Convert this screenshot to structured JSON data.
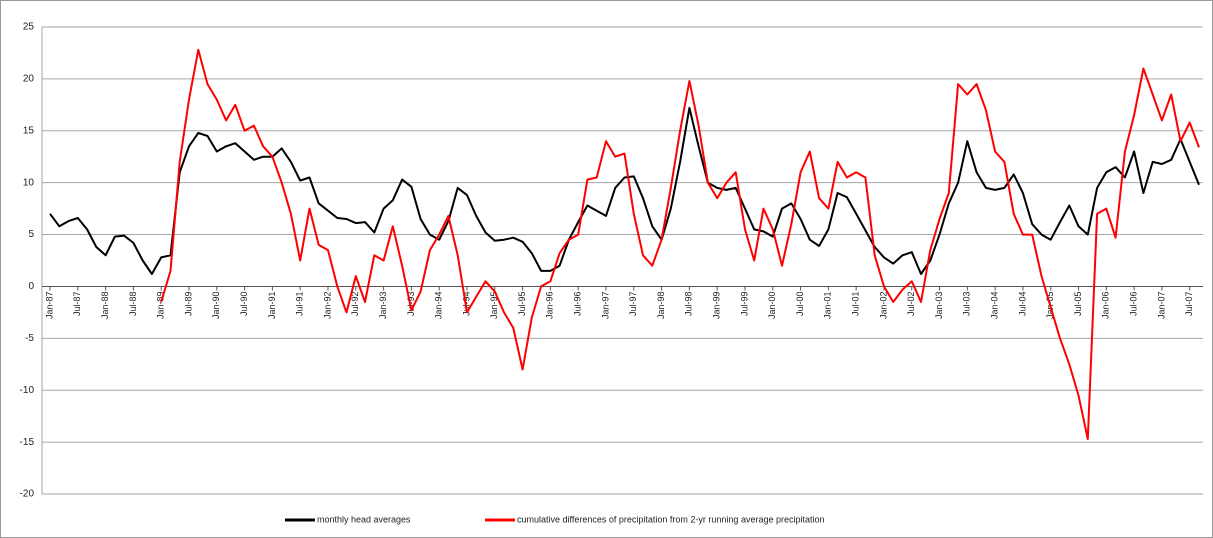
{
  "chart_data": {
    "type": "line",
    "categories": [
      "Jan-87",
      null,
      null,
      "Jul-87",
      null,
      null,
      "Jan-88",
      null,
      null,
      "Jul-88",
      null,
      null,
      "Jan-89",
      null,
      null,
      "Jul-89",
      null,
      null,
      "Jan-90",
      null,
      null,
      "Jul-90",
      null,
      null,
      "Jan-91",
      null,
      null,
      "Jul-91",
      null,
      null,
      "Jan-92",
      null,
      null,
      "Jul-92",
      null,
      null,
      "Jan-93",
      null,
      null,
      "Jul-93",
      null,
      null,
      "Jan-94",
      null,
      null,
      "Jul-94",
      null,
      null,
      "Jan-95",
      null,
      null,
      "Jul-95",
      null,
      null,
      "Jan-96",
      null,
      null,
      "Jul-96",
      null,
      null,
      "Jan-97",
      null,
      null,
      "Jul-97",
      null,
      null,
      "Jan-98",
      null,
      null,
      "Jul-98",
      null,
      null,
      "Jan-99",
      null,
      null,
      "Jul-99",
      null,
      null,
      "Jan-00",
      null,
      null,
      "Jul-00",
      null,
      null,
      "Jan-01",
      null,
      null,
      "Jul-01",
      null,
      null,
      "Jan-02",
      null,
      null,
      "Jul-02",
      null,
      null,
      "Jan-03",
      null,
      null,
      "Jul-03",
      null,
      null,
      "Jan-04",
      null,
      null,
      "Jul-04",
      null,
      null,
      "Jan-05",
      null,
      null,
      "Jul-05",
      null,
      null,
      "Jan-06",
      null,
      null,
      "Jul-06",
      null,
      null,
      "Jan-07",
      null,
      null,
      "Jul-07",
      null
    ],
    "series": [
      {
        "name": "monthly head averages",
        "color": "#000000",
        "values": [
          7,
          5.8,
          6.3,
          6.6,
          5.5,
          3.8,
          3.0,
          4.8,
          4.9,
          4.2,
          2.5,
          1.2,
          2.8,
          3.0,
          11,
          13.5,
          14.8,
          14.5,
          13,
          13.5,
          13.8,
          13,
          12.2,
          12.5,
          12.5,
          13.3,
          12,
          10.2,
          10.5,
          8,
          7.3,
          6.6,
          6.5,
          6.1,
          6.2,
          5.2,
          7.5,
          8.3,
          10.3,
          9.6,
          6.5,
          5,
          4.5,
          6.3,
          9.5,
          8.8,
          6.8,
          5.2,
          4.4,
          4.5,
          4.7,
          4.3,
          3.2,
          1.5,
          1.5,
          2.0,
          4.5,
          6.2,
          7.8,
          7.3,
          6.8,
          9.5,
          10.5,
          10.6,
          8.5,
          5.8,
          4.5,
          7.5,
          12,
          17.2,
          13.5,
          10,
          9.5,
          9.3,
          9.5,
          7.5,
          5.5,
          5.3,
          4.8,
          7.5,
          8,
          6.5,
          4.5,
          3.9,
          5.5,
          9,
          8.6,
          7,
          5.4,
          3.8,
          2.8,
          2.2,
          3.0,
          3.3,
          1.2,
          2.5,
          5,
          8,
          10,
          14,
          11,
          9.5,
          9.3,
          9.5,
          10.8,
          9,
          6,
          5,
          4.5,
          6.2,
          7.8,
          5.8,
          5,
          9.5,
          11,
          11.5,
          10.5,
          13,
          9,
          12,
          11.8,
          12.2,
          14.2,
          12,
          9.8
        ]
      },
      {
        "name": "cumulative differences of precipitation from 2-yr running average precipitation",
        "color": "#ff0000",
        "values": [
          null,
          null,
          null,
          null,
          null,
          null,
          null,
          null,
          null,
          null,
          null,
          null,
          -1.5,
          1.5,
          12,
          18,
          22.8,
          19.5,
          18,
          16,
          17.5,
          15,
          15.5,
          13.5,
          12.5,
          10,
          7,
          2.5,
          7.5,
          4,
          3.5,
          0,
          -2.5,
          1,
          -1.5,
          3,
          2.5,
          5.8,
          2,
          -2.3,
          -0.5,
          3.5,
          5,
          6.8,
          3,
          -2.5,
          -1,
          0.5,
          -0.5,
          -2.5,
          -4,
          -8,
          -3,
          0,
          0.5,
          3.2,
          4.5,
          5,
          10.3,
          10.5,
          14,
          12.5,
          12.8,
          7,
          3,
          2,
          4.5,
          9.5,
          15,
          19.8,
          15.5,
          10,
          8.5,
          10,
          11,
          5.5,
          2.5,
          7.5,
          5.5,
          2,
          6,
          11,
          13,
          8.5,
          7.5,
          12,
          10.5,
          11,
          10.5,
          3,
          0,
          -1.5,
          -0.3,
          0.5,
          -1.5,
          3.5,
          6.5,
          9,
          19.5,
          18.5,
          19.5,
          17,
          13,
          12,
          7,
          5,
          5,
          1,
          -2,
          -5,
          -7.5,
          -10.5,
          -14.7,
          7,
          7.5,
          4.7,
          13,
          16.5,
          21,
          18.5,
          16,
          18.5,
          14,
          15.8,
          13.4
        ]
      }
    ],
    "ylim": [
      -20,
      25
    ],
    "yticks": [
      -20,
      -15,
      -10,
      -5,
      0,
      5,
      10,
      15,
      20,
      25
    ],
    "grid": true
  }
}
